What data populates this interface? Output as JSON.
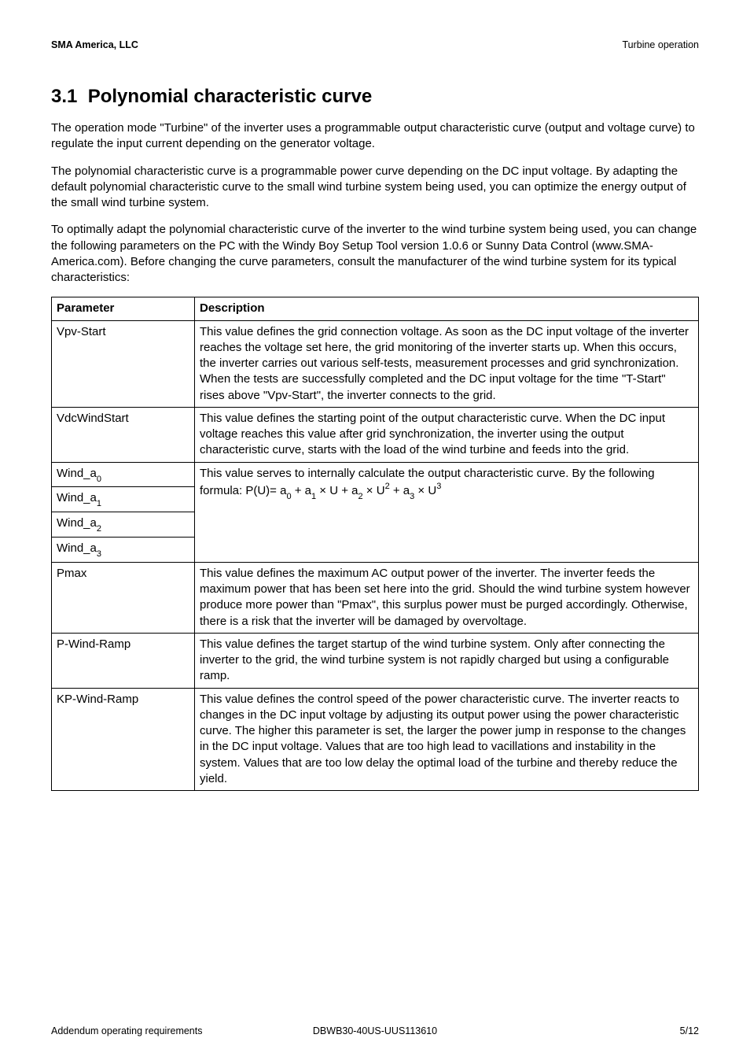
{
  "header": {
    "left": "SMA America, LLC",
    "right": "Turbine operation"
  },
  "section": {
    "number": "3.1",
    "title": "Polynomial characteristic curve"
  },
  "paragraphs": {
    "p1": "The operation mode \"Turbine\" of the inverter uses a programmable output characteristic curve (output and voltage curve) to regulate the input current depending on the generator voltage.",
    "p2": "The polynomial characteristic curve is a programmable power curve depending on the DC input voltage. By adapting the default polynomial characteristic curve to the small wind turbine system being used, you can optimize the energy output of the small wind turbine system.",
    "p3": "To optimally adapt the polynomial characteristic curve of the inverter to the wind turbine system being used, you can change the following parameters on the PC with the Windy Boy Setup Tool version 1.0.6 or Sunny Data Control (www.SMA-America.com). Before changing the curve parameters, consult the manufacturer of the wind turbine system for its typical characteristics:"
  },
  "table": {
    "headers": {
      "param": "Parameter",
      "desc": "Description"
    },
    "rows": {
      "vpv_start": {
        "param": "Vpv-Start",
        "desc": "This value defines the grid connection voltage. As soon as the DC input voltage of the inverter reaches the voltage set here, the grid monitoring of the inverter starts up. When this occurs, the inverter carries out various self-tests, measurement processes and grid synchronization. When the tests are successfully completed and the DC input voltage for the time \"T-Start\" rises above \"Vpv-Start\", the inverter connects to the grid."
      },
      "vdc_wind_start": {
        "param": "VdcWindStart",
        "desc": "This value defines the starting point of the output characteristic curve. When the DC input voltage reaches this value after grid synchronization, the inverter using the output characteristic curve, starts with the load of the wind turbine and feeds into the grid."
      },
      "wind_a": {
        "param_prefix": "Wind_a",
        "sub0": "0",
        "sub1": "1",
        "sub2": "2",
        "sub3": "3",
        "desc_line1": "This value serves to internally calculate the output characteristic curve. By",
        "desc_formula_prefix": "the following formula: P(U)= a",
        "desc_f0": "0",
        "desc_plus_a": " + a",
        "desc_f1": "1",
        "desc_xu_a": " × U + a",
        "desc_f2": "2",
        "desc_xu": " × U",
        "desc_sup2": "2",
        "desc_f3": "3",
        "desc_sup3": "3"
      },
      "pmax": {
        "param": "Pmax",
        "desc": "This value defines the maximum AC output power of the inverter. The inverter feeds the maximum power that has been set here into the grid. Should the wind turbine system however produce more power than \"Pmax\", this surplus power must be purged accordingly. Otherwise, there is a risk that the inverter will be damaged by overvoltage."
      },
      "p_wind_ramp": {
        "param": "P-Wind-Ramp",
        "desc": "This value defines the target startup of the wind turbine system. Only after connecting the inverter to the grid, the wind turbine system is not rapidly charged but using a configurable ramp."
      },
      "kp_wind_ramp": {
        "param": "KP-Wind-Ramp",
        "desc": "This value defines the control speed of the power characteristic curve. The inverter reacts to changes in the DC input voltage by adjusting its output power using the power characteristic curve. The higher this parameter is set, the larger the power jump in response to the changes in the DC input voltage. Values that are too high lead to vacillations and instability in the system. Values that are too low delay the optimal load of the turbine and thereby reduce the yield."
      }
    }
  },
  "footer": {
    "left": "Addendum operating requirements",
    "center": "DBWB30-40US-UUS113610",
    "right": "5/12"
  }
}
